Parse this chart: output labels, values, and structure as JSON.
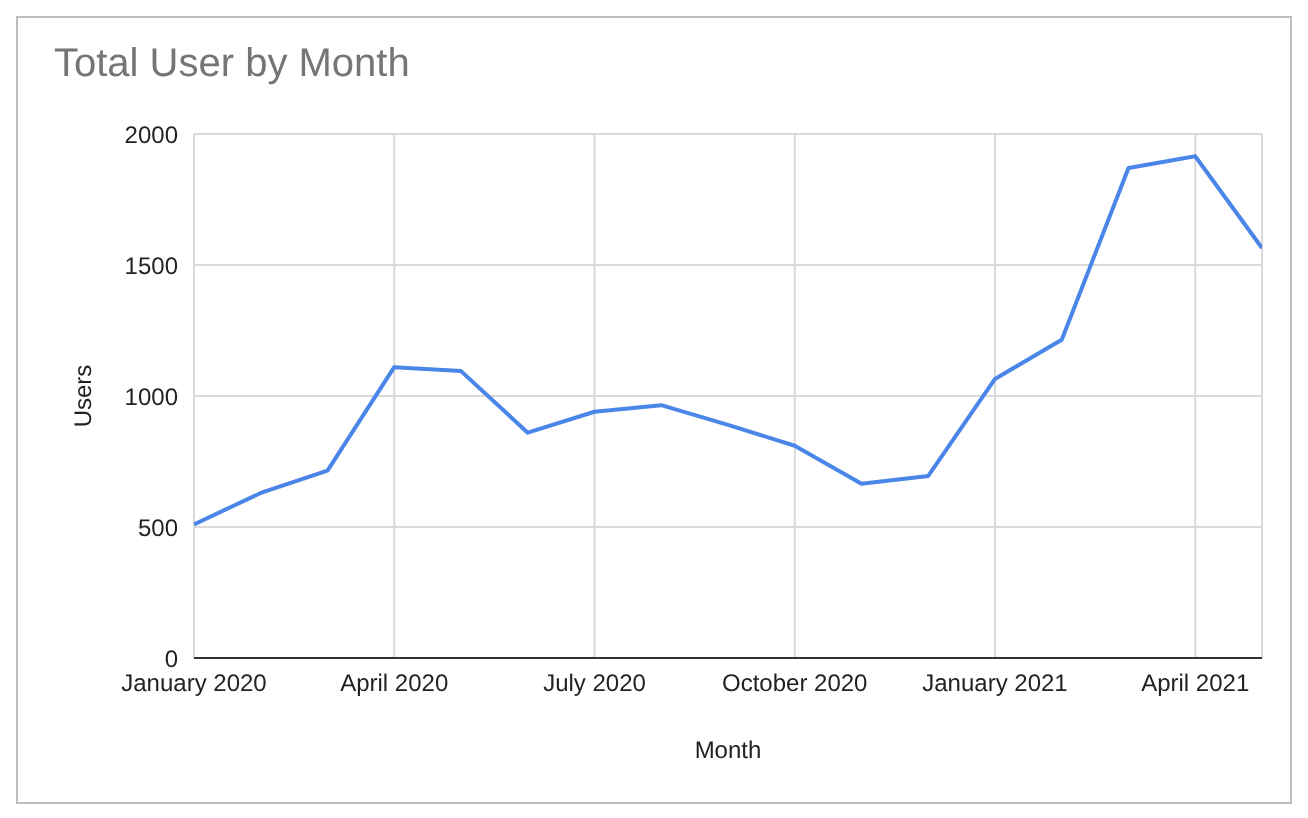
{
  "chart_data": {
    "type": "line",
    "title": "Total User by Month",
    "xlabel": "Month",
    "ylabel": "Users",
    "x": [
      "2020-01",
      "2020-02",
      "2020-03",
      "2020-04",
      "2020-05",
      "2020-06",
      "2020-07",
      "2020-08",
      "2020-09",
      "2020-10",
      "2020-11",
      "2020-12",
      "2021-01",
      "2021-02",
      "2021-03",
      "2021-04",
      "2021-05"
    ],
    "series": [
      {
        "color": "#4a86e8",
        "values": [
          510,
          630,
          715,
          1110,
          1095,
          860,
          940,
          965,
          890,
          810,
          665,
          695,
          1065,
          1215,
          1870,
          1915,
          1565
        ]
      }
    ],
    "xlim": [
      "2020-01",
      "2021-05"
    ],
    "xticks": [
      {
        "value": "2020-01",
        "label": "January 2020"
      },
      {
        "value": "2020-04",
        "label": "April 2020"
      },
      {
        "value": "2020-07",
        "label": "July 2020"
      },
      {
        "value": "2020-10",
        "label": "October 2020"
      },
      {
        "value": "2021-01",
        "label": "January 2021"
      },
      {
        "value": "2021-04",
        "label": "April 2021"
      }
    ],
    "ylim": [
      0,
      2000
    ],
    "yticks": [
      0,
      500,
      1000,
      1500,
      2000
    ],
    "grid": true,
    "marker": "none",
    "line_style": "solid"
  }
}
